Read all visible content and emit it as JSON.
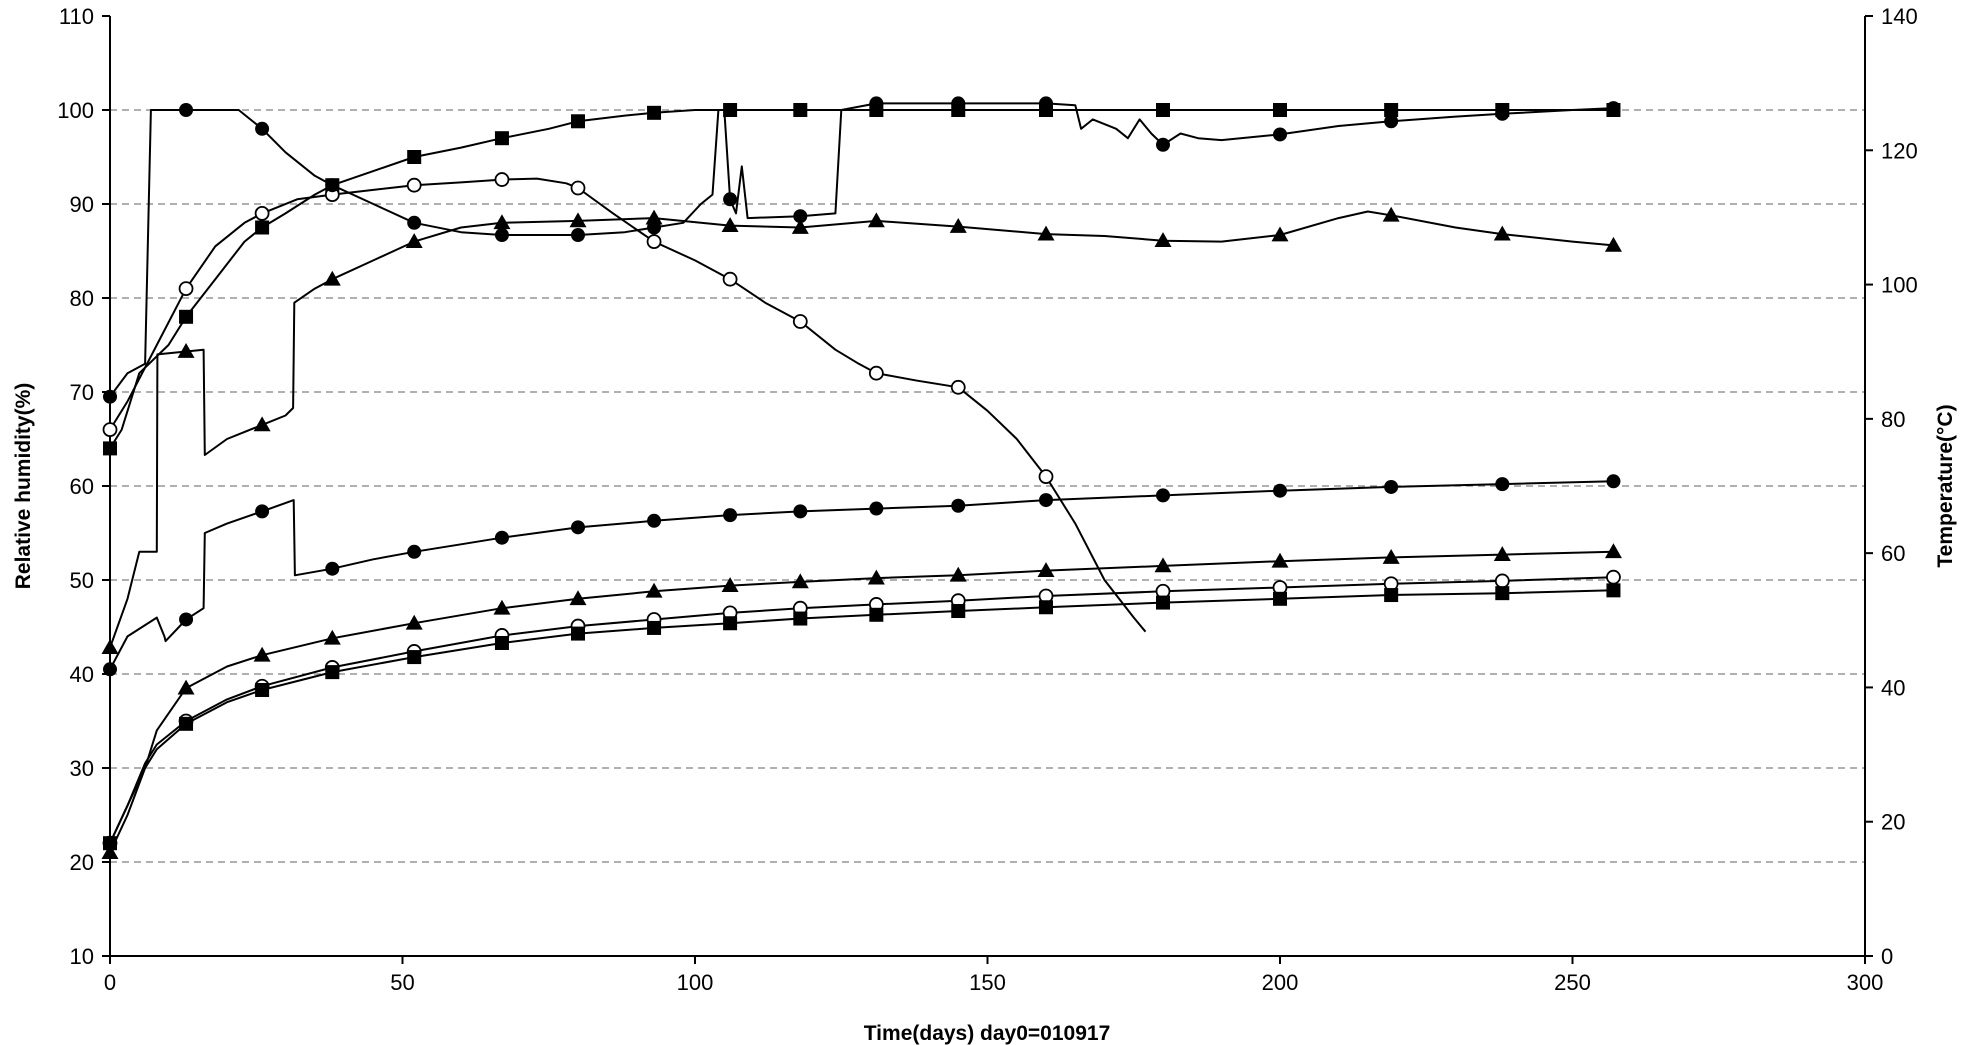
{
  "chart_data": {
    "type": "line",
    "xlabel": "Time(days) day0=010917",
    "ylabel": "Relative humidity(%)",
    "y2label": "Temperature(°C)",
    "xlim": [
      0,
      300
    ],
    "ylim": [
      10,
      110
    ],
    "y2lim": [
      0,
      140
    ],
    "x_ticks": [
      "0",
      "50",
      "100",
      "150",
      "200",
      "250",
      "300"
    ],
    "y_ticks": [
      "10",
      "20",
      "30",
      "40",
      "50",
      "60",
      "70",
      "80",
      "90",
      "100",
      "110"
    ],
    "y2_ticks": [
      "0",
      "20",
      "40",
      "60",
      "80",
      "100",
      "120",
      "140"
    ],
    "grid": "horizontal dashed",
    "legend": "none",
    "series": [
      {
        "marker": "square-filled",
        "points": [
          [
            0,
            64
          ],
          [
            2,
            66
          ],
          [
            5,
            72
          ],
          [
            10,
            75
          ],
          [
            13,
            78
          ],
          [
            18,
            82
          ],
          [
            23,
            86
          ],
          [
            26,
            87.5
          ],
          [
            30,
            89
          ],
          [
            35,
            91
          ],
          [
            38,
            92
          ],
          [
            45,
            93.5
          ],
          [
            52,
            95
          ],
          [
            60,
            96
          ],
          [
            67,
            97
          ],
          [
            75,
            98
          ],
          [
            80,
            98.8
          ],
          [
            88,
            99.4
          ],
          [
            93,
            99.7
          ],
          [
            100,
            100
          ],
          [
            106,
            100
          ],
          [
            118,
            100
          ],
          [
            131,
            100
          ],
          [
            145,
            100
          ],
          [
            160,
            100
          ],
          [
            180,
            100
          ],
          [
            200,
            100
          ],
          [
            219,
            100
          ],
          [
            238,
            100
          ],
          [
            257,
            100
          ]
        ],
        "marker_x": [
          0,
          13,
          26,
          38,
          52,
          67,
          80,
          93,
          106,
          118,
          131,
          145,
          160,
          180,
          200,
          219,
          238,
          257
        ]
      },
      {
        "marker": "circle-open",
        "points": [
          [
            0,
            66
          ],
          [
            3,
            69
          ],
          [
            8,
            75
          ],
          [
            13,
            81
          ],
          [
            18,
            85.5
          ],
          [
            23,
            88
          ],
          [
            26,
            89
          ],
          [
            32,
            90.5
          ],
          [
            38,
            91
          ],
          [
            45,
            91.5
          ],
          [
            52,
            92
          ],
          [
            60,
            92.3
          ],
          [
            67,
            92.6
          ],
          [
            73,
            92.7
          ],
          [
            78,
            92.2
          ],
          [
            80,
            91.7
          ],
          [
            86,
            89
          ],
          [
            93,
            86
          ],
          [
            100,
            84
          ],
          [
            106,
            82
          ],
          [
            112,
            79.5
          ],
          [
            118,
            77.5
          ],
          [
            124,
            74.5
          ],
          [
            128,
            73
          ],
          [
            131,
            72
          ],
          [
            138,
            71.2
          ],
          [
            145,
            70.5
          ],
          [
            150,
            68
          ],
          [
            155,
            65
          ],
          [
            160,
            61
          ],
          [
            165,
            56
          ],
          [
            170,
            50
          ],
          [
            175,
            46
          ],
          [
            177,
            44.5
          ]
        ],
        "marker_x": [
          0,
          13,
          26,
          38,
          52,
          67,
          80,
          93,
          106,
          118,
          131,
          145,
          160
        ]
      },
      {
        "marker": "circle-filled",
        "points": [
          [
            0,
            69.5
          ],
          [
            3,
            72
          ],
          [
            6,
            73
          ],
          [
            7,
            100
          ],
          [
            20,
            100
          ],
          [
            22,
            100
          ],
          [
            26,
            98
          ],
          [
            30,
            95.5
          ],
          [
            35,
            93
          ],
          [
            38,
            92
          ],
          [
            45,
            90
          ],
          [
            52,
            88
          ],
          [
            60,
            87
          ],
          [
            67,
            86.7
          ],
          [
            80,
            86.7
          ],
          [
            88,
            87
          ],
          [
            93,
            87.5
          ],
          [
            98,
            88
          ],
          [
            101,
            90
          ],
          [
            103,
            91
          ],
          [
            104,
            100
          ],
          [
            105,
            100
          ],
          [
            106,
            90.5
          ],
          [
            107,
            89
          ],
          [
            108,
            94
          ],
          [
            109,
            88.5
          ],
          [
            118,
            88.7
          ],
          [
            124,
            89
          ],
          [
            125,
            100
          ],
          [
            131,
            100.7
          ],
          [
            145,
            100.7
          ],
          [
            160,
            100.7
          ],
          [
            165,
            100.5
          ],
          [
            166,
            98
          ],
          [
            168,
            99
          ],
          [
            172,
            98
          ],
          [
            174,
            97
          ],
          [
            176,
            99
          ],
          [
            178,
            97.5
          ],
          [
            180,
            96.3
          ],
          [
            183,
            97.5
          ],
          [
            186,
            97
          ],
          [
            190,
            96.8
          ],
          [
            200,
            97.4
          ],
          [
            210,
            98.3
          ],
          [
            219,
            98.8
          ],
          [
            230,
            99.3
          ],
          [
            238,
            99.6
          ],
          [
            250,
            100
          ],
          [
            257,
            100.2
          ]
        ],
        "marker_x": [
          0,
          13,
          26,
          38,
          52,
          67,
          80,
          93,
          106,
          118,
          131,
          145,
          160,
          180,
          200,
          219,
          238,
          257
        ]
      },
      {
        "marker": "triangle-filled",
        "points": [
          [
            0,
            42.8
          ],
          [
            3,
            48
          ],
          [
            5,
            53
          ],
          [
            8,
            53
          ],
          [
            8.1,
            74
          ],
          [
            16,
            74.5
          ],
          [
            16.2,
            63.3
          ],
          [
            20,
            65
          ],
          [
            26,
            66.5
          ],
          [
            30,
            67.5
          ],
          [
            31.3,
            68.3
          ],
          [
            31.5,
            79.5
          ],
          [
            35,
            81
          ],
          [
            38,
            82
          ],
          [
            45,
            84
          ],
          [
            52,
            86
          ],
          [
            60,
            87.5
          ],
          [
            67,
            88
          ],
          [
            80,
            88.2
          ],
          [
            93,
            88.5
          ],
          [
            106,
            87.7
          ],
          [
            118,
            87.5
          ],
          [
            131,
            88.2
          ],
          [
            145,
            87.6
          ],
          [
            160,
            86.8
          ],
          [
            170,
            86.6
          ],
          [
            180,
            86.1
          ],
          [
            190,
            86
          ],
          [
            200,
            86.7
          ],
          [
            210,
            88.5
          ],
          [
            215,
            89.2
          ],
          [
            219,
            88.8
          ],
          [
            230,
            87.5
          ],
          [
            238,
            86.8
          ],
          [
            250,
            86
          ],
          [
            257,
            85.6
          ]
        ],
        "marker_x": [
          0,
          13,
          26,
          38,
          52,
          67,
          80,
          93,
          106,
          118,
          131,
          145,
          160,
          180,
          200,
          219,
          238,
          257
        ]
      },
      {
        "marker": "circle-filled",
        "points": [
          [
            0,
            40.5
          ],
          [
            3,
            44
          ],
          [
            8,
            46
          ],
          [
            9.3,
            44
          ],
          [
            9.5,
            43.5
          ],
          [
            13,
            45.8
          ],
          [
            16,
            47
          ],
          [
            16.2,
            55
          ],
          [
            20,
            56
          ],
          [
            26,
            57.3
          ],
          [
            31.4,
            58.5
          ],
          [
            31.6,
            50.5
          ],
          [
            38,
            51.2
          ],
          [
            45,
            52.2
          ],
          [
            52,
            53
          ],
          [
            60,
            53.8
          ],
          [
            67,
            54.5
          ],
          [
            80,
            55.6
          ],
          [
            93,
            56.3
          ],
          [
            106,
            56.9
          ],
          [
            118,
            57.3
          ],
          [
            131,
            57.6
          ],
          [
            145,
            57.9
          ],
          [
            160,
            58.5
          ],
          [
            180,
            59
          ],
          [
            200,
            59.5
          ],
          [
            219,
            59.9
          ],
          [
            238,
            60.2
          ],
          [
            257,
            60.5
          ]
        ],
        "marker_x": [
          0,
          13,
          26,
          38,
          52,
          67,
          80,
          93,
          106,
          118,
          131,
          145,
          160,
          180,
          200,
          219,
          238,
          257
        ]
      },
      {
        "marker": "triangle-filled",
        "points": [
          [
            0,
            21
          ],
          [
            3,
            25
          ],
          [
            6,
            30
          ],
          [
            8,
            34
          ],
          [
            13,
            38.5
          ],
          [
            20,
            40.8
          ],
          [
            26,
            42
          ],
          [
            38,
            43.8
          ],
          [
            52,
            45.4
          ],
          [
            67,
            47
          ],
          [
            80,
            48
          ],
          [
            93,
            48.8
          ],
          [
            106,
            49.4
          ],
          [
            118,
            49.8
          ],
          [
            131,
            50.2
          ],
          [
            145,
            50.5
          ],
          [
            160,
            51
          ],
          [
            180,
            51.5
          ],
          [
            200,
            52
          ],
          [
            219,
            52.4
          ],
          [
            238,
            52.7
          ],
          [
            257,
            53
          ]
        ],
        "marker_x": [
          0,
          13,
          26,
          38,
          52,
          67,
          80,
          93,
          106,
          118,
          131,
          145,
          160,
          180,
          200,
          219,
          238,
          257
        ]
      },
      {
        "marker": "circle-open",
        "points": [
          [
            0,
            22
          ],
          [
            3,
            26
          ],
          [
            6,
            30.5
          ],
          [
            8,
            32.5
          ],
          [
            13,
            35
          ],
          [
            20,
            37.3
          ],
          [
            26,
            38.7
          ],
          [
            38,
            40.7
          ],
          [
            52,
            42.4
          ],
          [
            67,
            44.1
          ],
          [
            80,
            45.1
          ],
          [
            93,
            45.8
          ],
          [
            106,
            46.5
          ],
          [
            118,
            47
          ],
          [
            131,
            47.4
          ],
          [
            145,
            47.8
          ],
          [
            160,
            48.3
          ],
          [
            180,
            48.8
          ],
          [
            200,
            49.2
          ],
          [
            219,
            49.6
          ],
          [
            238,
            49.9
          ],
          [
            257,
            50.3
          ]
        ],
        "marker_x": [
          0,
          13,
          26,
          38,
          52,
          67,
          80,
          93,
          106,
          118,
          131,
          145,
          160,
          180,
          200,
          219,
          238,
          257
        ]
      },
      {
        "marker": "square-filled",
        "points": [
          [
            0,
            22
          ],
          [
            3,
            26
          ],
          [
            6,
            30
          ],
          [
            8,
            32
          ],
          [
            13,
            34.7
          ],
          [
            20,
            37
          ],
          [
            26,
            38.3
          ],
          [
            38,
            40.2
          ],
          [
            52,
            41.8
          ],
          [
            67,
            43.3
          ],
          [
            80,
            44.3
          ],
          [
            93,
            44.9
          ],
          [
            106,
            45.4
          ],
          [
            118,
            45.9
          ],
          [
            131,
            46.3
          ],
          [
            145,
            46.7
          ],
          [
            160,
            47.1
          ],
          [
            180,
            47.6
          ],
          [
            200,
            48
          ],
          [
            219,
            48.4
          ],
          [
            238,
            48.6
          ],
          [
            257,
            48.9
          ]
        ],
        "marker_x": [
          0,
          13,
          26,
          38,
          52,
          67,
          80,
          93,
          106,
          118,
          131,
          145,
          160,
          180,
          200,
          219,
          238,
          257
        ]
      }
    ]
  }
}
